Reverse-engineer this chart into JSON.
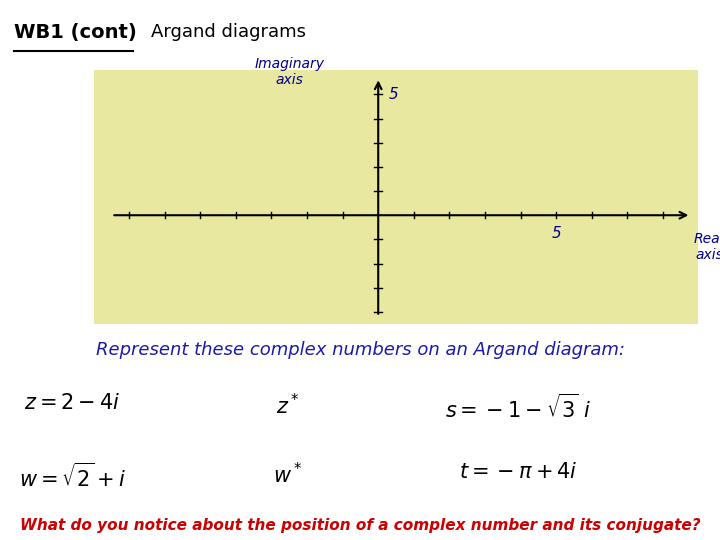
{
  "title_wb": "WB1 (cont)",
  "title_argand": "Argand diagrams",
  "plot_bg": "#e8e8a0",
  "label_color": "#00008B",
  "text_color_blue": "#1a1aaa",
  "text_color_red": "#cc0000",
  "represent_text": "Represent these complex numbers on an Argand diagram:",
  "bottom_text": "What do you notice about the position of a complex number and its conjugate?",
  "page_bg": "#ffffff",
  "real_ticks": [
    -7,
    -6,
    -5,
    -4,
    -3,
    -2,
    -1,
    1,
    2,
    3,
    4,
    5,
    6,
    7,
    8
  ],
  "imag_ticks": [
    -4,
    -3,
    -2,
    -1,
    1,
    2,
    3,
    4,
    5
  ],
  "xlim": [
    -8,
    9
  ],
  "ylim": [
    -4.5,
    6
  ]
}
